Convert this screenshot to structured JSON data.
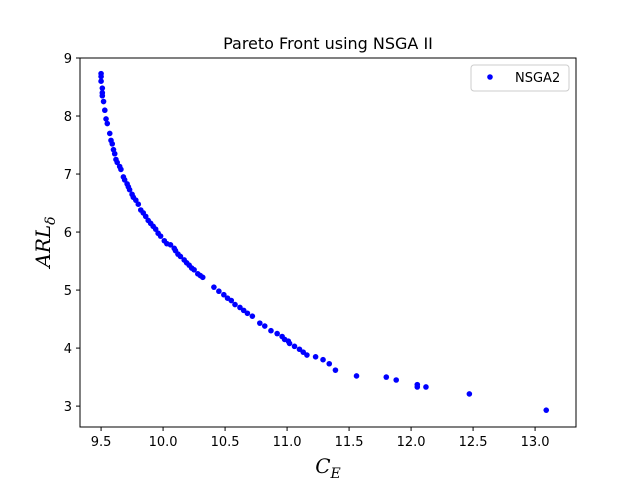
{
  "chart_data": {
    "type": "scatter",
    "title": "Pareto Front using NSGA II",
    "xlabel": {
      "main": "C",
      "sub": "E"
    },
    "ylabel": {
      "main": "ARL",
      "sub": "δ"
    },
    "xlim": [
      9.33,
      13.33
    ],
    "ylim": [
      2.64,
      9.0
    ],
    "xticks": [
      9.5,
      10.0,
      10.5,
      11.0,
      11.5,
      12.0,
      12.5,
      13.0
    ],
    "xtick_labels": [
      "9.5",
      "10.0",
      "10.5",
      "11.0",
      "11.5",
      "12.0",
      "12.5",
      "13.0"
    ],
    "yticks": [
      3,
      4,
      5,
      6,
      7,
      8,
      9
    ],
    "ytick_labels": [
      "3",
      "4",
      "5",
      "6",
      "7",
      "8",
      "9"
    ],
    "grid": false,
    "legend_position": "top-right",
    "series": [
      {
        "name": "NSGA2",
        "color": "#0000ff",
        "marker": "circle",
        "x": [
          9.5,
          9.5,
          9.5,
          9.51,
          9.51,
          9.51,
          9.52,
          9.53,
          9.54,
          9.55,
          9.57,
          9.58,
          9.59,
          9.6,
          9.61,
          9.62,
          9.63,
          9.65,
          9.66,
          9.68,
          9.69,
          9.71,
          9.72,
          9.73,
          9.75,
          9.76,
          9.78,
          9.8,
          9.82,
          9.84,
          9.86,
          9.88,
          9.9,
          9.92,
          9.94,
          9.96,
          9.98,
          10.01,
          10.03,
          10.06,
          10.09,
          10.1,
          10.12,
          10.14,
          10.17,
          10.19,
          10.21,
          10.23,
          10.25,
          10.28,
          10.3,
          10.32,
          10.41,
          10.45,
          10.49,
          10.52,
          10.55,
          10.58,
          10.62,
          10.65,
          10.68,
          10.72,
          10.78,
          10.82,
          10.87,
          10.92,
          10.96,
          10.98,
          11.01,
          11.02,
          11.06,
          11.1,
          11.13,
          11.16,
          11.23,
          11.29,
          11.34,
          11.39,
          11.56,
          11.8,
          11.88,
          12.05,
          12.05,
          12.12,
          12.47,
          13.09
        ],
        "y": [
          8.73,
          8.68,
          8.6,
          8.48,
          8.4,
          8.35,
          8.25,
          8.1,
          7.95,
          7.87,
          7.7,
          7.58,
          7.52,
          7.42,
          7.35,
          7.25,
          7.2,
          7.13,
          7.08,
          6.95,
          6.9,
          6.83,
          6.78,
          6.73,
          6.65,
          6.6,
          6.55,
          6.48,
          6.38,
          6.33,
          6.27,
          6.2,
          6.15,
          6.1,
          6.05,
          5.98,
          5.93,
          5.85,
          5.8,
          5.78,
          5.72,
          5.68,
          5.62,
          5.58,
          5.52,
          5.47,
          5.43,
          5.38,
          5.35,
          5.28,
          5.25,
          5.22,
          5.05,
          4.98,
          4.92,
          4.86,
          4.82,
          4.75,
          4.7,
          4.65,
          4.6,
          4.55,
          4.43,
          4.38,
          4.3,
          4.25,
          4.2,
          4.15,
          4.12,
          4.08,
          4.03,
          3.98,
          3.93,
          3.88,
          3.85,
          3.8,
          3.73,
          3.62,
          3.52,
          3.5,
          3.45,
          3.37,
          3.33,
          3.33,
          3.21,
          2.93
        ]
      }
    ]
  }
}
